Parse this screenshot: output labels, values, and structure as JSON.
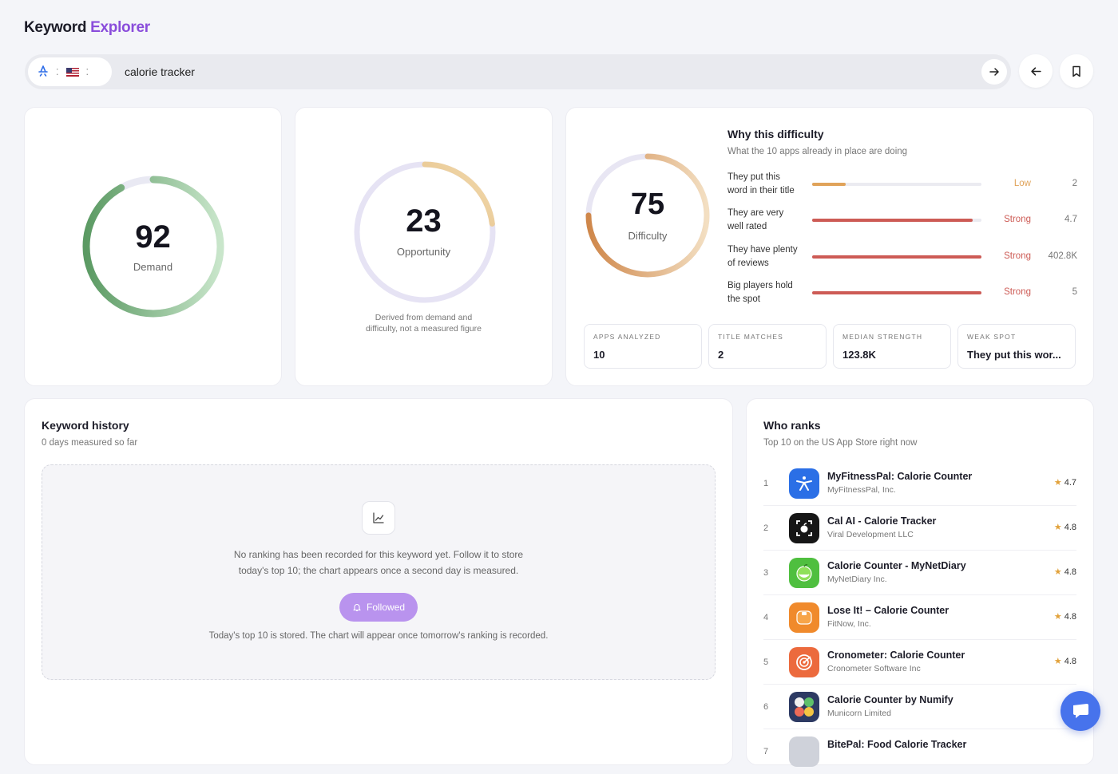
{
  "app": {
    "title_part1": "Keyword ",
    "title_part2": "Explorer",
    "accent_color": "#8a4ddb"
  },
  "search": {
    "store_icon": "app-store-icon",
    "country_icon": "us-flag-icon",
    "query": "calorie tracker",
    "go_icon": "arrow-right-icon",
    "back_icon": "arrow-left-icon",
    "bookmark_icon": "bookmark-icon"
  },
  "demand": {
    "value": 92,
    "label": "Demand",
    "color": "#5a9a62"
  },
  "opportunity": {
    "value": 23,
    "label": "Opportunity",
    "note_line1": "Derived from demand and",
    "note_line2": "difficulty, not a measured figure",
    "color": "#d7a05a"
  },
  "difficulty": {
    "value": 75,
    "label": "Difficulty",
    "color": "#d18b4f",
    "title": "Why this difficulty",
    "subtitle": "What the 10 apps already in place are doing",
    "factors": [
      {
        "line1": "They put this",
        "line2": "word in their title",
        "level": "Low",
        "value": "2",
        "fill": 0.2,
        "color": "#e0a35a"
      },
      {
        "line1": "They are very",
        "line2": "well rated",
        "level": "Strong",
        "value": "4.7",
        "fill": 0.95,
        "color": "#cd5b55"
      },
      {
        "line1": "They have plenty",
        "line2": "of reviews",
        "level": "Strong",
        "value": "402.8K",
        "fill": 1.0,
        "color": "#cd5b55"
      },
      {
        "line1": "Big players hold",
        "line2": "the spot",
        "level": "Strong",
        "value": "5",
        "fill": 1.0,
        "color": "#cd5b55"
      }
    ],
    "stats": [
      {
        "label": "APPS ANALYZED",
        "value": "10"
      },
      {
        "label": "TITLE MATCHES",
        "value": "2"
      },
      {
        "label": "MEDIAN STRENGTH",
        "value": "123.8K"
      },
      {
        "label": "WEAK SPOT",
        "value": "They put this wor..."
      }
    ]
  },
  "history": {
    "title": "Keyword history",
    "subtitle": "0 days measured so far",
    "chart_icon": "line-chart-icon",
    "empty_line1": "No ranking has been recorded for this keyword yet. Follow it to store",
    "empty_line2": "today's top 10; the chart appears once a second day is measured.",
    "followed_label": "Followed",
    "followed_icon": "bell-icon",
    "stored_text": "Today's top 10 is stored. The chart will appear once tomorrow's ranking is recorded."
  },
  "ranks": {
    "title": "Who ranks",
    "subtitle": "Top 10 on the US App Store right now",
    "items": [
      {
        "rank": "1",
        "name": "MyFitnessPal: Calorie Counter",
        "dev": "MyFitnessPal, Inc.",
        "rating": "4.7",
        "icon": "myfitnesspal-icon",
        "bg": "#2b6fe6"
      },
      {
        "rank": "2",
        "name": "Cal AI - Calorie Tracker",
        "dev": "Viral Development LLC",
        "rating": "4.8",
        "icon": "cal-ai-icon",
        "bg": "#161616"
      },
      {
        "rank": "3",
        "name": "Calorie Counter - MyNetDiary",
        "dev": "MyNetDiary Inc.",
        "rating": "4.8",
        "icon": "mynetdiary-icon",
        "bg": "#4fbf3f"
      },
      {
        "rank": "4",
        "name": "Lose It! – Calorie Counter",
        "dev": "FitNow, Inc.",
        "rating": "4.8",
        "icon": "lose-it-icon",
        "bg": "#f08a2c"
      },
      {
        "rank": "5",
        "name": "Cronometer: Calorie Counter",
        "dev": "Cronometer Software Inc",
        "rating": "4.8",
        "icon": "cronometer-icon",
        "bg": "#ec6a3d"
      },
      {
        "rank": "6",
        "name": "Calorie Counter by Numify",
        "dev": "Municorn Limited",
        "rating": "",
        "icon": "numify-icon",
        "bg": "#2d3a63"
      },
      {
        "rank": "7",
        "name": "BitePal: Food Calorie Tracker",
        "dev": "",
        "rating": "",
        "icon": "bitepal-icon",
        "bg": "#cfd2da"
      }
    ]
  },
  "chat": {
    "icon": "chat-icon"
  }
}
